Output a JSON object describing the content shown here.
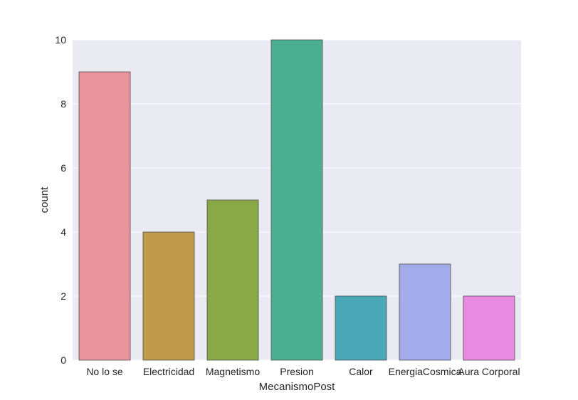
{
  "chart_data": {
    "type": "bar",
    "categories": [
      "No lo se",
      "Electricidad",
      "Magnetismo",
      "Presion",
      "Calor",
      "EnergiaCosmica",
      "Aura Corporal"
    ],
    "values": [
      9,
      4,
      5,
      10,
      2,
      3,
      2
    ],
    "colors": [
      "#e8949e",
      "#c09a4b",
      "#89a948",
      "#4caf8f",
      "#4ba8b7",
      "#a2acea",
      "#e88ae0"
    ],
    "xlabel": "MecanismoPost",
    "ylabel": "count",
    "ylim": [
      0,
      10
    ],
    "yticks": [
      "0",
      "2",
      "4",
      "6",
      "8",
      "10"
    ],
    "yticks_values": [
      0,
      2,
      4,
      6,
      8,
      10
    ],
    "grid": true,
    "background": "#eaeaf2"
  }
}
